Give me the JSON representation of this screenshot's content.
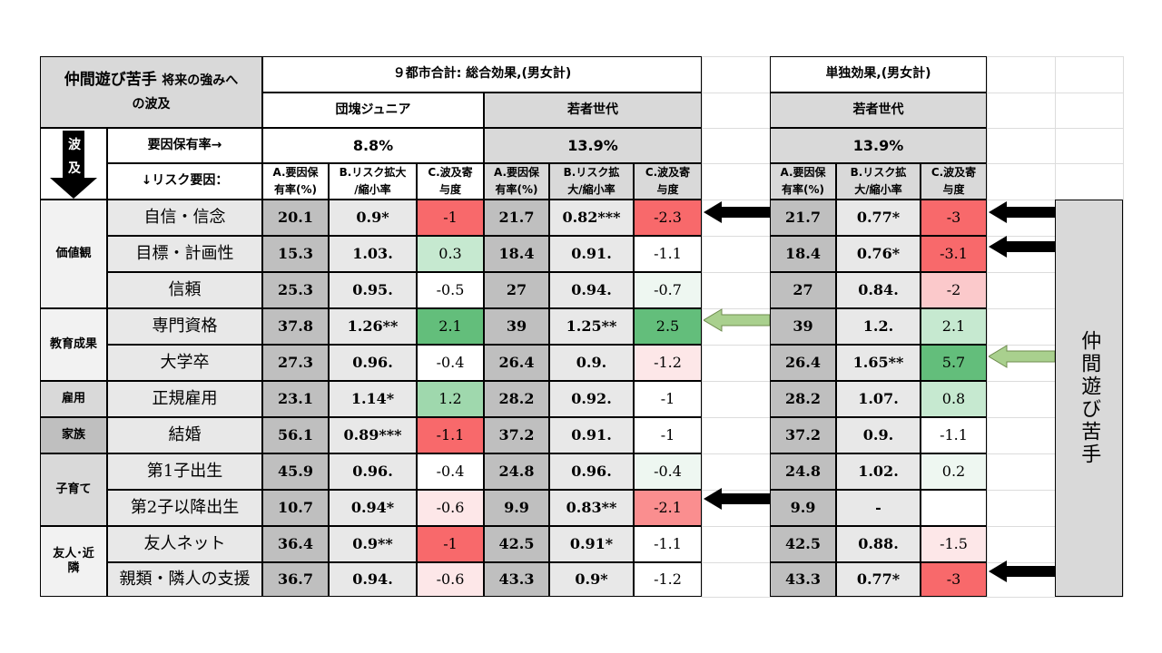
{
  "title": {
    "line1_main": "仲間遊び苦手",
    "line1_sub": "将来の強みへ",
    "line2": "の波及"
  },
  "headers": {
    "group_main": "９都市合計: 総合効果,(男女計)",
    "group_single": "単独効果,(男女計)",
    "sub_dankai": "団塊ジュニア",
    "sub_wakamono": "若者世代",
    "sub_wakamono_single": "若者世代"
  },
  "left_labels": {
    "arrow_chars": [
      "波",
      "及"
    ],
    "factor_rate_label": "要因保有率→",
    "risk_factor_label": "↓リスク要因："
  },
  "factor_rates": {
    "dankai": "8.8%",
    "wakamono": "13.9%",
    "wakamono_single": "13.9%"
  },
  "column_headers": [
    {
      "line1": "A.要因保",
      "line2": "有率(%)"
    },
    {
      "line1": "B.リスク拡大",
      "line2": "/縮小率"
    },
    {
      "line1": "C.波及寄",
      "line2": "与度"
    },
    {
      "line1": "A.要因保",
      "line2": "有率(%)"
    },
    {
      "line1": "B.リスク拡",
      "line2": "大/縮小率"
    },
    {
      "line1": "C.波及寄",
      "line2": "与度"
    },
    {
      "line1": "A.要因保",
      "line2": "有率(%)"
    },
    {
      "line1": "B.リスク拡",
      "line2": "大/縮小率"
    },
    {
      "line1": "C.波及寄",
      "line2": "与度"
    }
  ],
  "categories": [
    {
      "label": "価値観"
    },
    {
      "label": "教育成果"
    },
    {
      "label": "雇用"
    },
    {
      "label": "家族"
    },
    {
      "label": "子育て"
    },
    {
      "label": "友人･近",
      "label2": "隣"
    }
  ],
  "rows": [
    {
      "factor": "自信・信念",
      "dankai": [
        "20.1",
        "0.9*",
        "-1"
      ],
      "wakamono": [
        "21.7",
        "0.82***",
        "-2.3"
      ],
      "single": [
        "21.7",
        "0.77*",
        "-3"
      ]
    },
    {
      "factor": "目標・計画性",
      "dankai": [
        "15.3",
        "1.03.",
        "0.3"
      ],
      "wakamono": [
        "18.4",
        "0.91.",
        "-1.1"
      ],
      "single": [
        "18.4",
        "0.76*",
        "-3.1"
      ]
    },
    {
      "factor": "信頼",
      "dankai": [
        "25.3",
        "0.95.",
        "-0.5"
      ],
      "wakamono": [
        "27",
        "0.94.",
        "-0.7"
      ],
      "single": [
        "27",
        "0.84.",
        "-2"
      ]
    },
    {
      "factor": "専門資格",
      "dankai": [
        "37.8",
        "1.26**",
        "2.1"
      ],
      "wakamono": [
        "39",
        "1.25**",
        "2.5"
      ],
      "single": [
        "39",
        "1.2.",
        "2.1"
      ]
    },
    {
      "factor": "大学卒",
      "dankai": [
        "27.3",
        "0.96.",
        "-0.4"
      ],
      "wakamono": [
        "26.4",
        "0.9.",
        "-1.2"
      ],
      "single": [
        "26.4",
        "1.65**",
        "5.7"
      ]
    },
    {
      "factor": "正規雇用",
      "dankai": [
        "23.1",
        "1.14*",
        "1.2"
      ],
      "wakamono": [
        "28.2",
        "0.92.",
        "-1"
      ],
      "single": [
        "28.2",
        "1.07.",
        "0.8"
      ]
    },
    {
      "factor": "結婚",
      "dankai": [
        "56.1",
        "0.89***",
        "-1.1"
      ],
      "wakamono": [
        "37.2",
        "0.91.",
        "-1"
      ],
      "single": [
        "37.2",
        "0.9.",
        "-1.1"
      ]
    },
    {
      "factor": "第1子出生",
      "dankai": [
        "45.9",
        "0.96.",
        "-0.4"
      ],
      "wakamono": [
        "24.8",
        "0.96.",
        "-0.4"
      ],
      "single": [
        "24.8",
        "1.02.",
        "0.2"
      ]
    },
    {
      "factor": "第2子以降出生",
      "dankai": [
        "10.7",
        "0.94*",
        "-0.6"
      ],
      "wakamono": [
        "9.9",
        "0.83**",
        "-2.1"
      ],
      "single": [
        "9.9",
        "-",
        ""
      ]
    },
    {
      "factor": "友人ネット",
      "dankai": [
        "36.4",
        "0.9**",
        "-1"
      ],
      "wakamono": [
        "42.5",
        "0.91*",
        "-1.1"
      ],
      "single": [
        "42.5",
        "0.88.",
        "-1.5"
      ]
    },
    {
      "factor": "親類・隣人の支援",
      "dankai": [
        "36.7",
        "0.94.",
        "-0.6"
      ],
      "wakamono": [
        "43.3",
        "0.9*",
        "-1.2"
      ],
      "single": [
        "43.3",
        "0.77*",
        "-3"
      ]
    }
  ],
  "side_label": "仲間遊び苦手",
  "colors": {
    "header_gray": "#d9d9d9",
    "cell_gray": "#e8e8e8",
    "dark_gray": "#bfbfbf",
    "positive_strong": "#63be7b",
    "positive_light": "#c6e9d0",
    "negative_strong": "#f8696b",
    "negative_light": "#fbc9cb",
    "arrow_black": "#000000",
    "arrow_green": "#a9d08e"
  }
}
